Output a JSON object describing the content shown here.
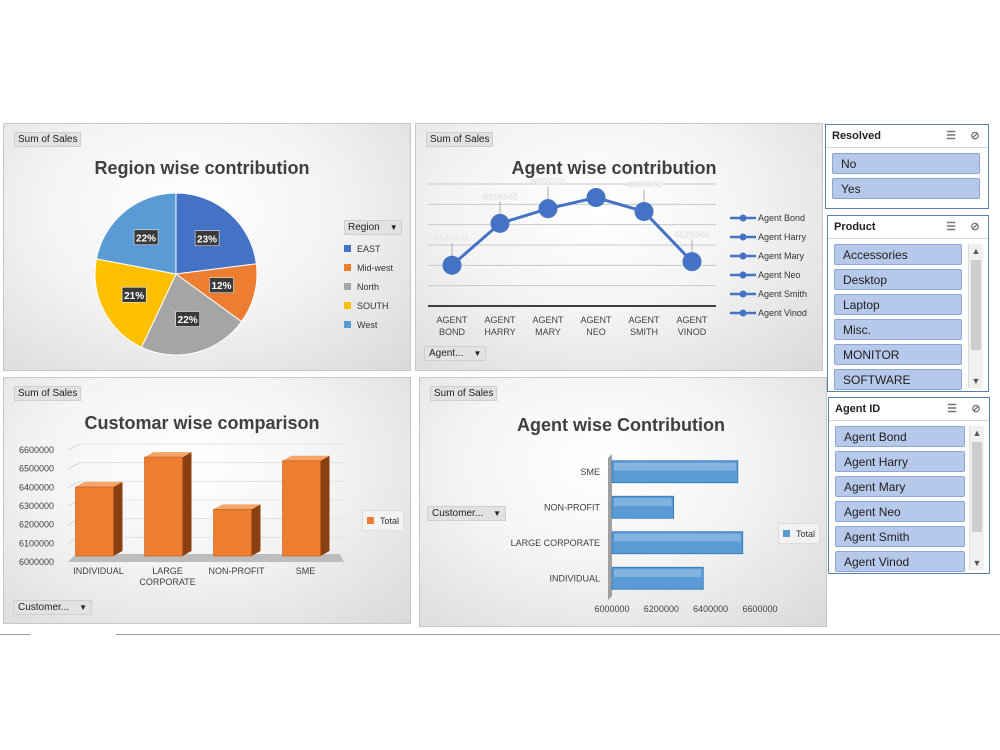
{
  "charts": {
    "region": {
      "field_button": "Sum of Sales",
      "title": "Region wise contribution",
      "legend_header": "Region",
      "chart_data": {
        "type": "pie",
        "categories": [
          "EAST",
          "Mid-west",
          "North",
          "SOUTH",
          "West"
        ],
        "values": [
          23,
          12,
          22,
          21,
          22
        ],
        "data_labels": [
          "23%",
          "12%",
          "22%",
          "21%",
          "22%"
        ],
        "colors": [
          "#4472c4",
          "#ed7d31",
          "#a5a5a5",
          "#ffc000",
          "#5b9bd5"
        ],
        "legend": "right"
      }
    },
    "agent_line": {
      "field_button": "Sum of Sales",
      "title": "Agent wise contribution",
      "dropdown": "Agent...",
      "chart_data": {
        "type": "line",
        "categories": [
          "AGENT BOND",
          "AGENT HARRY",
          "AGENT MARY",
          "AGENT NEO",
          "AGENT SMITH",
          "AGENT VINOD"
        ],
        "values": [
          4150321,
          4304645,
          4359000,
          4400000,
          4348465,
          4163448
        ],
        "data_labels": [
          "4150321",
          "4304645",
          "4359000",
          "",
          "4348465",
          "4163448"
        ],
        "legend_entries": [
          "Agent Bond",
          "Agent Harry",
          "Agent Mary",
          "Agent Neo",
          "Agent Smith",
          "Agent Vinod"
        ],
        "ylim": [
          4000000,
          4450000
        ],
        "color": "#4472c4",
        "grid": true,
        "legend": "right"
      }
    },
    "customer_bar": {
      "field_button": "Sum of Sales",
      "title": "Customar wise comparison",
      "dropdown": "Customer...",
      "chart_data": {
        "type": "bar",
        "categories": [
          "INDIVIDUAL",
          "LARGE CORPORATE",
          "NON-PROFIT",
          "SME"
        ],
        "series": [
          {
            "name": "Total",
            "values": [
              6370000,
              6530000,
              6250000,
              6510000
            ]
          }
        ],
        "yticks": [
          "6000000",
          "6100000",
          "6200000",
          "6300000",
          "6400000",
          "6500000",
          "6600000"
        ],
        "ylim": [
          6000000,
          6600000
        ],
        "color": "#ed7d31",
        "legend": "right"
      }
    },
    "agent_hbar": {
      "field_button": "Sum of Sales",
      "title": "Agent wise Contribution",
      "dropdown": "Customer...",
      "chart_data": {
        "type": "bar",
        "orientation": "horizontal",
        "categories": [
          "SME",
          "NON-PROFIT",
          "LARGE CORPORATE",
          "INDIVIDUAL"
        ],
        "series": [
          {
            "name": "Total",
            "values": [
              6510000,
              6250000,
              6530000,
              6370000
            ]
          }
        ],
        "xticks": [
          "6000000",
          "6200000",
          "6400000",
          "6600000"
        ],
        "xlim": [
          6000000,
          6600000
        ],
        "color": "#5b9bd5",
        "legend": "right"
      }
    }
  },
  "slicers": {
    "resolved": {
      "title": "Resolved",
      "items": [
        "No",
        "Yes"
      ]
    },
    "product": {
      "title": "Product",
      "items": [
        "Accessories",
        "Desktop",
        "Laptop",
        "Misc.",
        "MONITOR",
        "SOFTWARE"
      ]
    },
    "agent_id": {
      "title": "Agent ID",
      "items": [
        "Agent Bond",
        "Agent Harry",
        "Agent Mary",
        "Agent Neo",
        "Agent Smith",
        "Agent Vinod"
      ]
    }
  },
  "icons": {
    "multiselect": "multi-select-icon",
    "clear_filter": "clear-filter-icon"
  }
}
